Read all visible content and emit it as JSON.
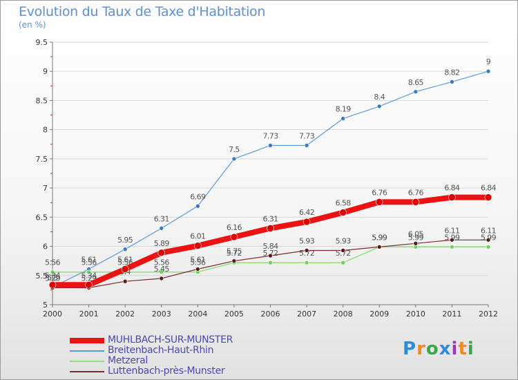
{
  "title": "Evolution du Taux de Taxe d'Habitation",
  "subtitle": "(en %)",
  "logo_text": "Proxiti",
  "colors": {
    "axis": "#777777",
    "grid": "#d8d8d8",
    "tick_red": "#d02020",
    "title": "#5f8fd2",
    "legend_text": "#4a4aa8"
  },
  "chart_data": {
    "type": "line",
    "title": "Evolution du Taux de Taxe d'Habitation",
    "subtitle": "(en %)",
    "xlabel": "",
    "ylabel": "",
    "x": [
      "2000",
      "2001",
      "2002",
      "2003",
      "2004",
      "2005",
      "2006",
      "2007",
      "2008",
      "2009",
      "2010",
      "2011",
      "2012"
    ],
    "ylim": [
      5,
      9.5
    ],
    "yticks": [
      "5",
      "5.5",
      "6",
      "6.5",
      "7",
      "7.5",
      "8",
      "8.5",
      "9",
      "9.5"
    ],
    "grid": true,
    "legend_position": "bottom-left",
    "series": [
      {
        "name": "Breitenbach-Haut-Rhin",
        "color": "#5b9bd5",
        "marker": "#3a78c0",
        "width": 1.2,
        "values": [
          5.3,
          5.61,
          5.95,
          6.31,
          6.69,
          7.5,
          7.73,
          7.73,
          8.19,
          8.4,
          8.65,
          8.82,
          9
        ],
        "labels": [
          "5.3",
          "5.61",
          "5.95",
          "6.31",
          "6.69",
          "7.5",
          "7.73",
          "7.73",
          "8.19",
          "8.4",
          "8.65",
          "8.82",
          "9"
        ]
      },
      {
        "name": "Metzeral",
        "color": "#8ee07a",
        "marker": "#6dd35a",
        "width": 1.5,
        "values": [
          5.56,
          5.56,
          5.56,
          5.56,
          5.56,
          5.72,
          5.72,
          5.72,
          5.72,
          5.99,
          5.99,
          5.99,
          5.99
        ],
        "labels": [
          "5.56",
          "5.56",
          "5.56",
          "5.56",
          "5.56",
          "5.72",
          "5.72",
          "5.72",
          "5.72",
          "5.99",
          "5.99",
          "5.99",
          "5.99"
        ]
      },
      {
        "name": "Luttenbach-près-Munster",
        "color": "#7a2a2a",
        "marker": "#5a1a1a",
        "width": 1.2,
        "values": [
          5.29,
          5.29,
          5.4,
          5.45,
          5.61,
          5.75,
          5.84,
          5.93,
          5.93,
          5.99,
          6.05,
          6.11,
          6.11
        ],
        "labels": [
          "5.29",
          "5.29",
          "5.4",
          "5.45",
          "5.61",
          "5.75",
          "5.84",
          "5.93",
          "5.93",
          "5.99",
          "6.05",
          "6.11",
          "6.11"
        ]
      },
      {
        "name": "MUHLBACH-SUR-MUNSTER",
        "color": "#ee1111",
        "marker": "#dd0000",
        "width": 8,
        "values": [
          5.34,
          5.34,
          5.61,
          5.89,
          6.01,
          6.16,
          6.31,
          6.42,
          6.58,
          6.76,
          6.76,
          6.84,
          6.84
        ],
        "labels": [
          "5.34",
          "5.34",
          "5.61",
          "5.89",
          "6.01",
          "6.16",
          "6.31",
          "6.42",
          "6.58",
          "6.76",
          "6.76",
          "6.84",
          "6.84"
        ]
      }
    ],
    "legend_order": [
      "MUHLBACH-SUR-MUNSTER",
      "Breitenbach-Haut-Rhin",
      "Metzeral",
      "Luttenbach-près-Munster"
    ]
  }
}
